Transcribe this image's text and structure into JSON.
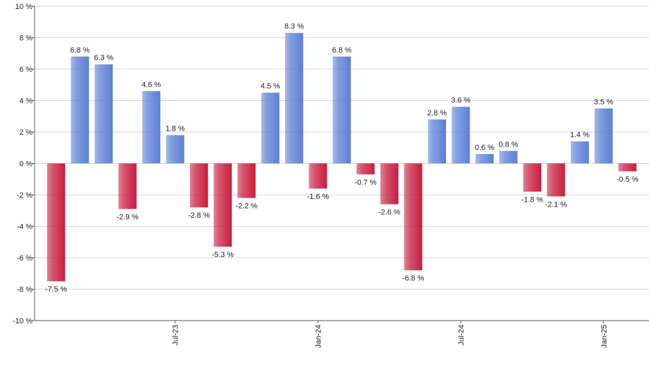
{
  "chart_data": {
    "type": "bar",
    "categories": [
      null,
      null,
      null,
      null,
      null,
      "Jul-23",
      null,
      null,
      null,
      null,
      null,
      "Jan-24",
      null,
      null,
      null,
      null,
      null,
      "Jul-24",
      null,
      null,
      null,
      null,
      null,
      "Jan-25",
      null
    ],
    "values": [
      -7.5,
      6.8,
      6.3,
      -2.9,
      4.6,
      1.8,
      -2.8,
      -5.3,
      -2.2,
      4.5,
      8.3,
      -1.6,
      6.8,
      -0.7,
      -2.6,
      -6.8,
      2.8,
      3.6,
      0.6,
      0.8,
      -1.8,
      -2.1,
      1.4,
      3.5,
      -0.5
    ],
    "value_labels": [
      "-7.5 %",
      "6.8 %",
      "6.3 %",
      "-2.9 %",
      "4.6 %",
      "1.8 %",
      "-2.8 %",
      "-5.3 %",
      "-2.2 %",
      "4.5 %",
      "8.3 %",
      "-1.6 %",
      "6.8 %",
      "-0.7 %",
      "-2.6 %",
      "-6.8 %",
      "2.8 %",
      "3.6 %",
      "0.6 %",
      "0.8 %",
      "-1.8 %",
      "-2.1 %",
      "1.4 %",
      "3.5 %",
      "-0.5 %"
    ],
    "positive_color": "#5a7fd6",
    "negative_color": "#c81d3e",
    "ylim": [
      -10,
      10
    ],
    "yticks": [
      {
        "value": -10,
        "label": "-10 %"
      },
      {
        "value": -8,
        "label": "-8 %"
      },
      {
        "value": -6,
        "label": "-6 %"
      },
      {
        "value": -4,
        "label": "-4 %"
      },
      {
        "value": -2,
        "label": "-2 %"
      },
      {
        "value": 0,
        "label": "0 %"
      },
      {
        "value": 2,
        "label": "2 %"
      },
      {
        "value": 4,
        "label": "4 %"
      },
      {
        "value": 6,
        "label": "6 %"
      },
      {
        "value": 8,
        "label": "8 %"
      },
      {
        "value": 10,
        "label": "10 %"
      }
    ],
    "grid": true
  }
}
